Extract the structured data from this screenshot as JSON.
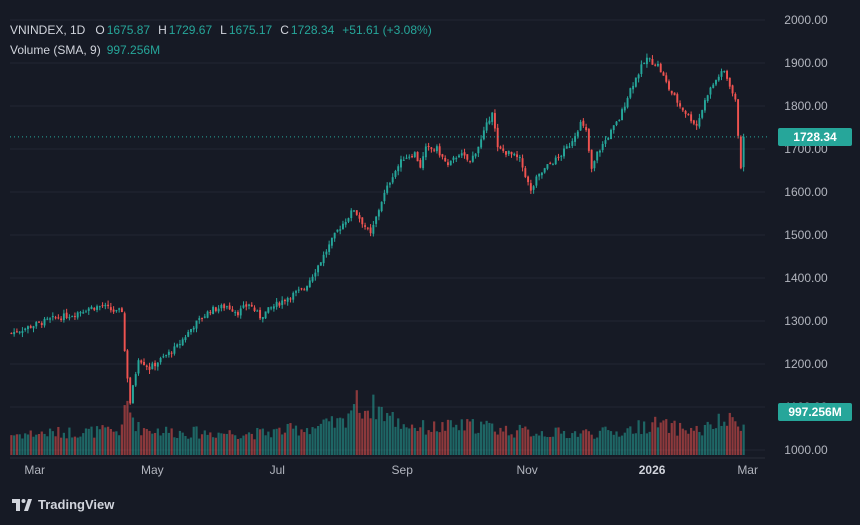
{
  "legend": {
    "symbol": "VNINDEX, 1D",
    "open_label": "O",
    "open": "1675.87",
    "high_label": "H",
    "high": "1729.67",
    "low_label": "L",
    "low": "1675.17",
    "close_label": "C",
    "close": "1728.34",
    "change": "+51.61 (+3.08%)",
    "volume_label": "Volume (SMA, 9)",
    "volume_value": "997.256M"
  },
  "price_tag": "1728.34",
  "volume_tag": "997.256M",
  "brand": {
    "name": "TradingView",
    "icon": "tradingview-logo-icon"
  },
  "colors": {
    "up": "#26a69a",
    "down": "#ef5350",
    "background": "#161a25",
    "grid": "#232734"
  },
  "chart_data": {
    "type": "candlestick",
    "y_axis": {
      "min": 1000,
      "max": 2000,
      "ticks": [
        "1000.00",
        "1100.00",
        "1200.00",
        "1300.00",
        "1400.00",
        "1500.00",
        "1600.00",
        "1700.00",
        "1800.00",
        "1900.00",
        "2000.00"
      ]
    },
    "x_axis": {
      "labels": [
        {
          "text": "Mar",
          "pos": 0.02
        },
        {
          "text": "May",
          "pos": 0.18
        },
        {
          "text": "Jul",
          "pos": 0.35
        },
        {
          "text": "Sep",
          "pos": 0.52
        },
        {
          "text": "Nov",
          "pos": 0.69
        },
        {
          "text": "2026",
          "pos": 0.86,
          "bold": true
        },
        {
          "text": "Mar",
          "pos": 0.99
        }
      ]
    },
    "last_close": 1728.34,
    "close_path": [
      [
        0,
        1272
      ],
      [
        8,
        1290
      ],
      [
        15,
        1305
      ],
      [
        22,
        1315
      ],
      [
        28,
        1330
      ],
      [
        33,
        1335
      ],
      [
        38,
        1320
      ],
      [
        40,
        1325
      ],
      [
        41,
        1230
      ],
      [
        43,
        1110
      ],
      [
        46,
        1215
      ],
      [
        50,
        1190
      ],
      [
        55,
        1215
      ],
      [
        60,
        1240
      ],
      [
        66,
        1290
      ],
      [
        72,
        1325
      ],
      [
        78,
        1335
      ],
      [
        82,
        1320
      ],
      [
        86,
        1340
      ],
      [
        90,
        1310
      ],
      [
        94,
        1330
      ],
      [
        100,
        1355
      ],
      [
        106,
        1375
      ],
      [
        112,
        1440
      ],
      [
        118,
        1510
      ],
      [
        124,
        1560
      ],
      [
        128,
        1520
      ],
      [
        130,
        1500
      ],
      [
        134,
        1580
      ],
      [
        138,
        1640
      ],
      [
        142,
        1680
      ],
      [
        146,
        1690
      ],
      [
        148,
        1660
      ],
      [
        150,
        1700
      ],
      [
        154,
        1700
      ],
      [
        158,
        1660
      ],
      [
        162,
        1690
      ],
      [
        166,
        1670
      ],
      [
        170,
        1720
      ],
      [
        174,
        1790
      ],
      [
        176,
        1700
      ],
      [
        180,
        1690
      ],
      [
        184,
        1675
      ],
      [
        186,
        1640
      ],
      [
        188,
        1600
      ],
      [
        190,
        1630
      ],
      [
        194,
        1660
      ],
      [
        198,
        1680
      ],
      [
        202,
        1710
      ],
      [
        206,
        1760
      ],
      [
        208,
        1740
      ],
      [
        210,
        1650
      ],
      [
        212,
        1690
      ],
      [
        216,
        1730
      ],
      [
        220,
        1770
      ],
      [
        224,
        1840
      ],
      [
        228,
        1890
      ],
      [
        230,
        1910
      ],
      [
        234,
        1895
      ],
      [
        238,
        1840
      ],
      [
        242,
        1800
      ],
      [
        246,
        1770
      ],
      [
        248,
        1755
      ],
      [
        252,
        1830
      ],
      [
        256,
        1870
      ],
      [
        258,
        1880
      ],
      [
        260,
        1850
      ],
      [
        262,
        1810
      ],
      [
        264,
        1660
      ],
      [
        265,
        1728.34
      ]
    ],
    "volume_profile": [
      [
        0,
        0.38
      ],
      [
        20,
        0.42
      ],
      [
        40,
        0.45
      ],
      [
        41,
        0.85
      ],
      [
        42,
        0.95
      ],
      [
        44,
        0.7
      ],
      [
        46,
        0.5
      ],
      [
        60,
        0.42
      ],
      [
        90,
        0.4
      ],
      [
        110,
        0.52
      ],
      [
        120,
        0.6
      ],
      [
        124,
        1.0
      ],
      [
        128,
        0.85
      ],
      [
        132,
        0.9
      ],
      [
        136,
        0.75
      ],
      [
        140,
        0.6
      ],
      [
        150,
        0.5
      ],
      [
        170,
        0.55
      ],
      [
        180,
        0.45
      ],
      [
        200,
        0.4
      ],
      [
        220,
        0.42
      ],
      [
        226,
        0.5
      ],
      [
        232,
        0.58
      ],
      [
        240,
        0.5
      ],
      [
        250,
        0.45
      ],
      [
        256,
        0.6
      ],
      [
        260,
        0.62
      ],
      [
        265,
        0.55
      ]
    ]
  }
}
